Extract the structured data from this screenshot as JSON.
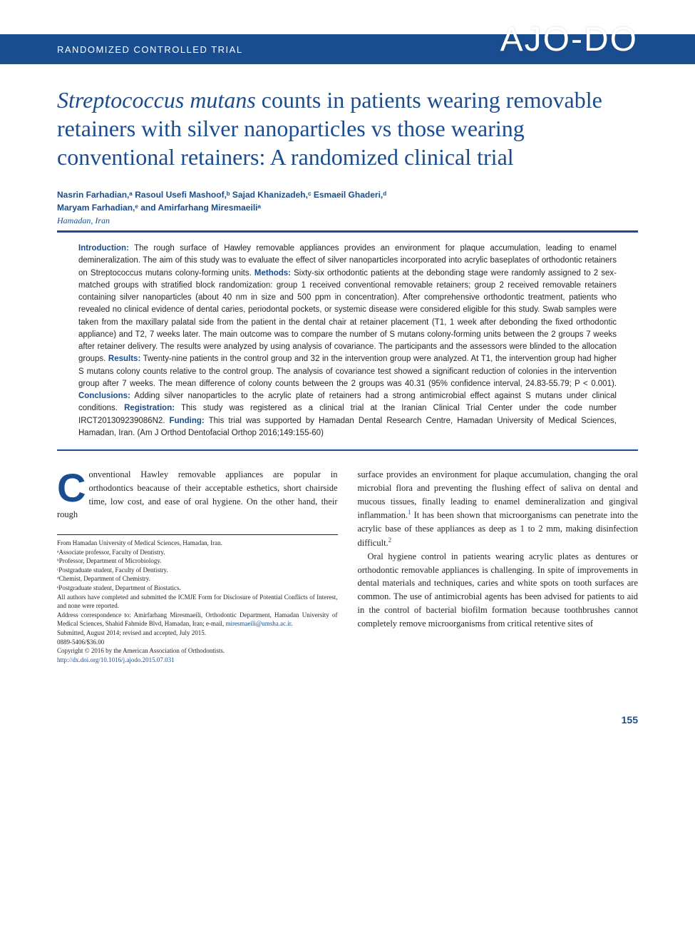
{
  "header": {
    "trial_label": "RANDOMIZED CONTROLLED TRIAL",
    "journal_logo": "AJO-DO"
  },
  "title": {
    "italic_part": "Streptococcus mutans",
    "rest": " counts in patients wearing removable retainers with silver nanoparticles vs those wearing conventional retainers: A randomized clinical trial"
  },
  "authors_line1": "Nasrin Farhadian,ᵃ Rasoul Usefi Mashoof,ᵇ Sajad Khanizadeh,ᶜ Esmaeil Ghaderi,ᵈ",
  "authors_line2": "Maryam Farhadian,ᵉ and Amirfarhang Miresmaeiliᵃ",
  "location": "Hamadan, Iran",
  "abstract": {
    "intro_label": "Introduction:",
    "intro_text": " The rough surface of Hawley removable appliances provides an environment for plaque accumulation, leading to enamel demineralization. The aim of this study was to evaluate the effect of silver nanoparticles incorporated into acrylic baseplates of orthodontic retainers on Streptococcus mutans colony-forming units. ",
    "methods_label": "Methods:",
    "methods_text": " Sixty-six orthodontic patients at the debonding stage were randomly assigned to 2 sex-matched groups with stratified block randomization: group 1 received conventional removable retainers; group 2 received removable retainers containing silver nanoparticles (about 40 nm in size and 500 ppm in concentration). After comprehensive orthodontic treatment, patients who revealed no clinical evidence of dental caries, periodontal pockets, or systemic disease were considered eligible for this study. Swab samples were taken from the maxillary palatal side from the patient in the dental chair at retainer placement (T1, 1 week after debonding the fixed orthodontic appliance) and T2, 7 weeks later. The main outcome was to compare the number of S mutans colony-forming units between the 2 groups 7 weeks after retainer delivery. The results were analyzed by using analysis of covariance. The participants and the assessors were blinded to the allocation groups. ",
    "results_label": "Results:",
    "results_text": " Twenty-nine patients in the control group and 32 in the intervention group were analyzed. At T1, the intervention group had higher S mutans colony counts relative to the control group. The analysis of covariance test showed a significant reduction of colonies in the intervention group after 7 weeks. The mean difference of colony counts between the 2 groups was 40.31 (95% confidence interval, 24.83-55.79; P < 0.001). ",
    "conclusions_label": "Conclusions:",
    "conclusions_text": " Adding silver nanoparticles to the acrylic plate of retainers had a strong antimicrobial effect against S mutans under clinical conditions. ",
    "registration_label": "Registration:",
    "registration_text": " This study was registered as a clinical trial at the Iranian Clinical Trial Center under the code number IRCT201309239086N2. ",
    "funding_label": "Funding:",
    "funding_text": " This trial was supported by Hamadan Dental Research Centre, Hamadan University of Medical Sciences, Hamadan, Iran. (Am J Orthod Dentofacial Orthop 2016;149:155-60)"
  },
  "body": {
    "dropcap": "C",
    "col1_first": "onventional Hawley removable appliances are popular in orthodontics beacause of their acceptable esthetics, short chairside time, low cost, and ease of oral hygiene. On the other hand, their rough",
    "col2_p1": "surface provides an environment for plaque accumulation, changing the oral microbial flora and preventing the flushing effect of saliva on dental and mucous tissues, finally leading to enamel demineralization and gingival inflammation.",
    "col2_p1_after_ref": " It has been shown that microorganisms can penetrate into the acrylic base of these appliances as deep as 1 to 2 mm, making disinfection difficult.",
    "col2_p2": "Oral hygiene control in patients wearing acrylic plates as dentures or orthodontic removable appliances is challenging. In spite of improvements in dental materials and techniques, caries and white spots on tooth surfaces are common. The use of antimicrobial agents has been advised for patients to aid in the control of bacterial biofilm formation because toothbrushes cannot completely remove microorganisms from critical retentive sites of",
    "ref1": "1",
    "ref2": "2"
  },
  "footnotes": {
    "from": "From Hamadan University of Medical Sciences, Hamadan, Iran.",
    "a": "ᵃAssociate professor, Faculty of Dentistry.",
    "b": "ᵇProfessor, Department of Microbiology.",
    "c": "ᶜPostgraduate student, Faculty of Dentistry.",
    "d": "ᵈChemist, Department of Chemistry.",
    "e": "ᵉPostgraduate student, Department of Biostatics.",
    "disclosure": "All authors have completed and submitted the ICMJE Form for Disclosure of Potential Conflicts of Interest, and none were reported.",
    "correspondence": "Address correspondence to: Amirfarhang Miresmaeili, Orthodontic Department, Hamadan University of Medical Sciences, Shahid Fahmide Blvd, Hamadan, Iran; e-mail, ",
    "email": "miresmaeili@umsha.ac.ir",
    "email_period": ".",
    "submitted": "Submitted, August 2014; revised and accepted, July 2015.",
    "issn": "0889-5406/$36.00",
    "copyright": "Copyright © 2016 by the American Association of Orthodontists.",
    "doi": "http://dx.doi.org/10.1016/j.ajodo.2015.07.031"
  },
  "page_number": "155",
  "colors": {
    "primary_blue": "#1a4d8f",
    "text": "#231f20",
    "background": "#ffffff"
  }
}
